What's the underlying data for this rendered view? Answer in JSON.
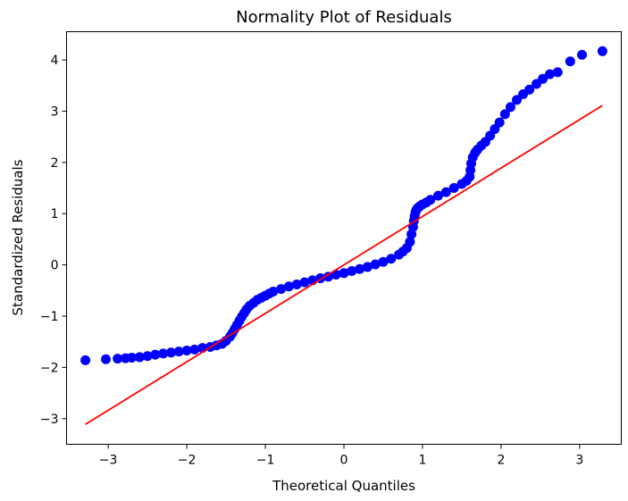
{
  "chart_data": {
    "type": "scatter",
    "title": "Normality Plot of Residuals",
    "xlabel": "Theoretical Quantiles",
    "ylabel": "Standardized Residuals",
    "xlim": [
      -3.53,
      3.53
    ],
    "ylim": [
      -3.5,
      4.55
    ],
    "xticks": [
      -3,
      -2,
      -1,
      0,
      1,
      2,
      3
    ],
    "yticks": [
      -3,
      -2,
      -1,
      0,
      1,
      2,
      3,
      4
    ],
    "xtick_labels": [
      "−3",
      "−2",
      "−1",
      "0",
      "1",
      "2",
      "3"
    ],
    "ytick_labels": [
      "−3",
      "−2",
      "−1",
      "0",
      "1",
      "2",
      "3",
      "4"
    ],
    "grid": false,
    "legend": "none",
    "colors": {
      "points": "#0000ff",
      "fit_line": "#ff0000",
      "axes": "#000000"
    },
    "fit_line": {
      "x": [
        -3.29,
        3.29
      ],
      "y": [
        -3.11,
        3.11
      ]
    },
    "series": [
      {
        "x": [
          -3.29,
          -3.03,
          -2.88,
          -2.78,
          -2.7,
          -2.6,
          -2.5,
          -2.4,
          -2.3,
          -2.2,
          -2.1,
          -2.0,
          -1.9,
          -1.8,
          -1.7,
          -1.62,
          -1.55,
          -1.5,
          -1.45,
          -1.42,
          -1.39,
          -1.36,
          -1.33,
          -1.3,
          -1.27,
          -1.24,
          -1.2,
          -1.15,
          -1.1,
          -1.05,
          -1.0,
          -0.95,
          -0.9,
          -0.8,
          -0.7,
          -0.6,
          -0.5,
          -0.4,
          -0.3,
          -0.2,
          -0.1,
          0.0,
          0.1,
          0.2,
          0.3,
          0.4,
          0.5,
          0.6,
          0.7,
          0.75,
          0.8,
          0.84,
          0.86,
          0.88,
          0.89,
          0.9,
          0.91,
          0.92,
          0.94,
          0.97,
          1.0,
          1.05,
          1.1,
          1.2,
          1.3,
          1.4,
          1.5,
          1.56,
          1.6,
          1.61,
          1.62,
          1.64,
          1.67,
          1.7,
          1.75,
          1.8,
          1.86,
          1.92,
          1.98,
          2.05,
          2.12,
          2.2,
          2.28,
          2.36,
          2.45,
          2.53,
          2.62,
          2.72,
          2.88,
          3.03,
          3.29
        ],
        "y": [
          -1.86,
          -1.84,
          -1.83,
          -1.82,
          -1.81,
          -1.8,
          -1.78,
          -1.75,
          -1.73,
          -1.71,
          -1.69,
          -1.67,
          -1.65,
          -1.62,
          -1.6,
          -1.57,
          -1.54,
          -1.48,
          -1.4,
          -1.33,
          -1.25,
          -1.17,
          -1.09,
          -1.01,
          -0.94,
          -0.87,
          -0.8,
          -0.74,
          -0.68,
          -0.64,
          -0.6,
          -0.56,
          -0.52,
          -0.47,
          -0.42,
          -0.38,
          -0.34,
          -0.3,
          -0.26,
          -0.23,
          -0.19,
          -0.16,
          -0.12,
          -0.08,
          -0.04,
          0.01,
          0.06,
          0.12,
          0.2,
          0.26,
          0.33,
          0.45,
          0.6,
          0.74,
          0.86,
          0.95,
          1.02,
          1.07,
          1.11,
          1.15,
          1.18,
          1.22,
          1.27,
          1.35,
          1.42,
          1.5,
          1.58,
          1.64,
          1.72,
          1.85,
          1.98,
          2.1,
          2.19,
          2.25,
          2.33,
          2.4,
          2.52,
          2.65,
          2.78,
          2.94,
          3.08,
          3.22,
          3.33,
          3.42,
          3.53,
          3.63,
          3.72,
          3.76,
          3.97,
          4.1,
          4.17
        ]
      }
    ]
  }
}
